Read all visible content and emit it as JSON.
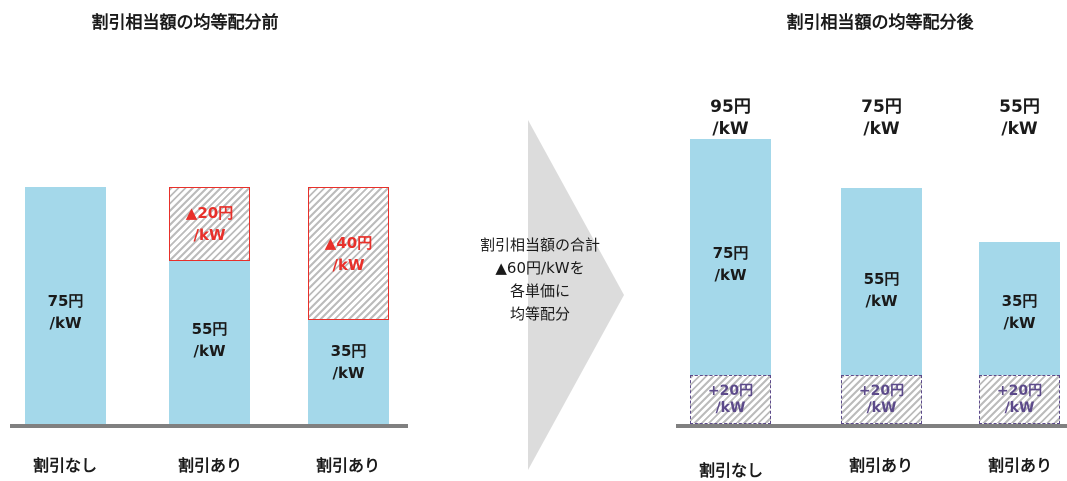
{
  "before": {
    "title": "割引相当額の均等配分前",
    "bars": [
      {
        "category": "割引なし",
        "base_label": "75円\n/kW",
        "discount_label": ""
      },
      {
        "category": "割引あり",
        "base_label": "55円\n/kW",
        "discount_label": "▲20円\n/kW"
      },
      {
        "category": "割引あり",
        "base_label": "35円\n/kW",
        "discount_label": "▲40円\n/kW"
      }
    ]
  },
  "arrow_text": "割引相当額の合計\n▲60円/kWを\n各単価に\n均等配分",
  "after": {
    "title": "割引相当額の均等配分後",
    "bars": [
      {
        "category": "割引なし",
        "total_label": "95円\n/kW",
        "base_label": "75円\n/kW",
        "addition_label": "+20円\n/kW"
      },
      {
        "category": "割引あり",
        "total_label": "75円\n/kW",
        "base_label": "55円\n/kW",
        "addition_label": "+20円\n/kW"
      },
      {
        "category": "割引あり",
        "total_label": "55円\n/kW",
        "base_label": "35円\n/kW",
        "addition_label": "+20円\n/kW"
      }
    ]
  },
  "chart_data": {
    "type": "bar",
    "unit": "円/kW",
    "before": {
      "categories": [
        "割引なし",
        "割引あり",
        "割引あり"
      ],
      "series": [
        {
          "values": [
            75,
            55,
            35
          ]
        },
        {
          "values": [
            0,
            20,
            40
          ]
        }
      ]
    },
    "after": {
      "categories": [
        "割引なし",
        "割引あり",
        "割引あり"
      ],
      "totals": [
        95,
        75,
        55
      ],
      "series": [
        {
          "values": [
            75,
            55,
            35
          ]
        },
        {
          "values": [
            20,
            20,
            20
          ]
        }
      ]
    }
  },
  "colors": {
    "bar_fill": "#a4d8ea",
    "discount_border": "#e8302a",
    "discount_text": "#e8302a",
    "addition_border": "#5c4a8a",
    "addition_text": "#5c4a8a",
    "arrow_fill": "#dcdcdc",
    "baseline": "#808080"
  }
}
